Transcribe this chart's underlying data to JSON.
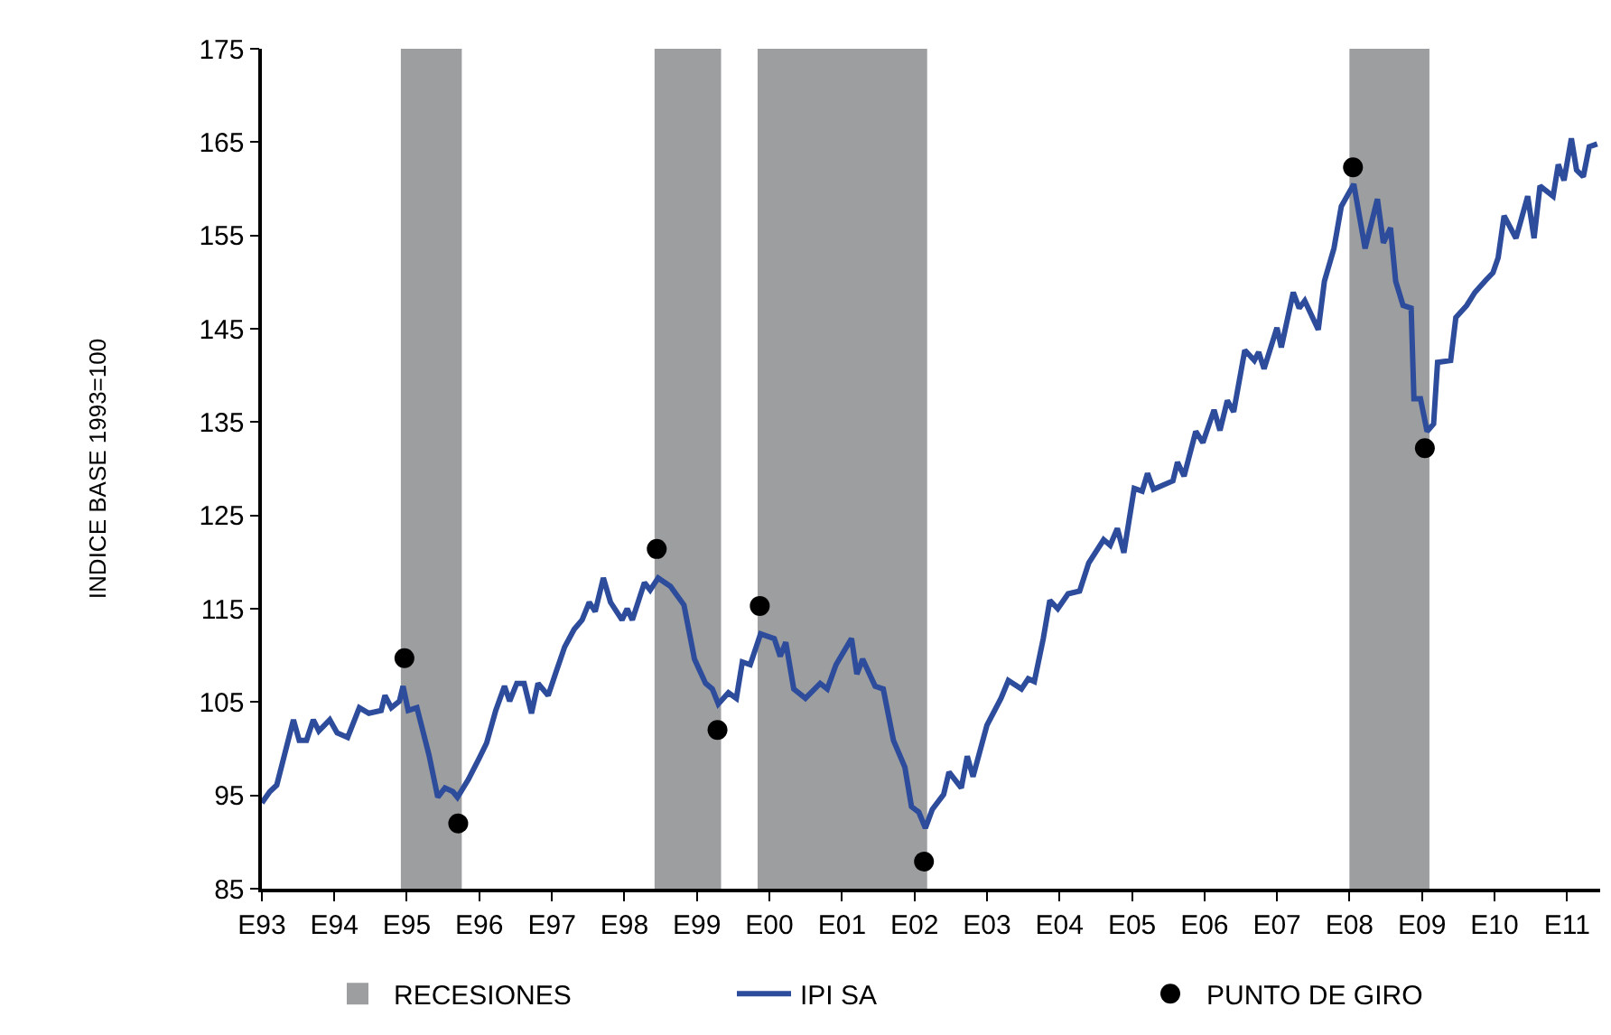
{
  "chart_data": {
    "type": "line",
    "ylabel": "INDICE BASE 1993=100",
    "xlim": [
      "1993-01-01",
      "2011-06-17"
    ],
    "xticks": [
      {
        "value": "1993-01-01",
        "label": "E93"
      },
      {
        "value": "1994-01-01",
        "label": "E94"
      },
      {
        "value": "1995-01-01",
        "label": "E95"
      },
      {
        "value": "1996-01-01",
        "label": "E96"
      },
      {
        "value": "1997-01-01",
        "label": "E97"
      },
      {
        "value": "1998-01-01",
        "label": "E98"
      },
      {
        "value": "1999-01-01",
        "label": "E99"
      },
      {
        "value": "2000-01-01",
        "label": "E00"
      },
      {
        "value": "2001-01-01",
        "label": "E01"
      },
      {
        "value": "2002-01-01",
        "label": "E02"
      },
      {
        "value": "2003-01-01",
        "label": "E03"
      },
      {
        "value": "2004-01-01",
        "label": "E04"
      },
      {
        "value": "2005-01-01",
        "label": "E05"
      },
      {
        "value": "2006-01-01",
        "label": "E06"
      },
      {
        "value": "2007-01-01",
        "label": "E07"
      },
      {
        "value": "2008-01-01",
        "label": "E08"
      },
      {
        "value": "2009-01-01",
        "label": "E09"
      },
      {
        "value": "2010-01-01",
        "label": "E10"
      },
      {
        "value": "2011-01-01",
        "label": "E11"
      }
    ],
    "ylim": [
      85,
      175
    ],
    "yticks": [
      85,
      95,
      105,
      115,
      125,
      135,
      145,
      155,
      165,
      175
    ],
    "grid": false,
    "legend": "bottom",
    "bands": [
      {
        "axis": "x",
        "from": "1994-12-02",
        "to": "1995-10-05",
        "label": "RECESIONES",
        "color": "#9d9ea0"
      },
      {
        "axis": "x",
        "from": "1998-06-02",
        "to": "1999-05-03",
        "color": "#9d9ea0"
      },
      {
        "axis": "x",
        "from": "1999-11-03",
        "to": "2002-03-06",
        "color": "#9d9ea0"
      },
      {
        "axis": "x",
        "from": "2008-01-01",
        "to": "2009-02-07",
        "color": "#9d9ea0"
      }
    ],
    "series": [
      {
        "name": "IPI SA",
        "color": "#2e4c9c",
        "marker": "none",
        "line_style": "solid",
        "x": [
          "1993-01-01",
          "1993-02-10",
          "1993-03-17",
          "1993-06-09",
          "1993-07-08",
          "1993-08-14",
          "1993-09-17",
          "1993-10-15",
          "1993-12-09",
          "1994-01-15",
          "1994-03-09",
          "1994-05-07",
          "1994-06-24",
          "1994-08-25",
          "1994-09-13",
          "1994-10-15",
          "1994-11-25",
          "1994-12-13",
          "1995-01-08",
          "1995-02-21",
          "1995-04-23",
          "1995-06-06",
          "1995-07-12",
          "1995-08-21",
          "1995-09-13",
          "1995-11-07",
          "1996-01-01",
          "1996-02-07",
          "1996-03-24",
          "1996-05-07",
          "1996-06-02",
          "1996-07-08",
          "1996-08-14",
          "1996-09-20",
          "1996-10-23",
          "1996-12-13",
          "1997-01-23",
          "1997-03-06",
          "1997-04-23",
          "1997-06-02",
          "1997-07-08",
          "1997-08-07",
          "1997-09-17",
          "1997-10-23",
          "1997-12-20",
          "1998-01-15",
          "1998-02-10",
          "1998-04-12",
          "1998-05-11",
          "1998-06-20",
          "1998-08-21",
          "1998-10-28",
          "1998-12-20",
          "1999-02-14",
          "1999-03-20",
          "1999-04-19",
          "1999-06-09",
          "1999-07-19",
          "1999-08-18",
          "1999-09-27",
          "1999-11-18",
          "2000-01-26",
          "2000-02-25",
          "2000-03-24",
          "2000-05-03",
          "2000-07-01",
          "2000-09-13",
          "2000-10-19",
          "2000-12-02",
          "2001-02-18",
          "2001-03-17",
          "2001-04-15",
          "2001-06-17",
          "2001-07-28",
          "2001-09-17",
          "2001-11-14",
          "2001-12-17",
          "2002-01-23",
          "2002-02-25",
          "2002-04-01",
          "2002-05-28",
          "2002-06-24",
          "2002-08-25",
          "2002-09-24",
          "2002-10-23",
          "2003-01-01",
          "2003-03-13",
          "2003-04-19",
          "2003-06-24",
          "2003-07-28",
          "2003-08-28",
          "2003-10-12",
          "2003-11-14",
          "2003-12-24",
          "2004-02-14",
          "2004-04-12",
          "2004-05-28",
          "2004-08-11",
          "2004-09-13",
          "2004-10-19",
          "2004-11-21",
          "2005-01-12",
          "2005-02-21",
          "2005-03-20",
          "2005-04-19",
          "2005-07-26",
          "2005-08-18",
          "2005-09-20",
          "2005-11-18",
          "2005-12-24",
          "2006-02-18",
          "2006-03-20",
          "2006-04-26",
          "2006-05-28",
          "2006-07-23",
          "2006-09-09",
          "2006-10-01",
          "2006-10-28",
          "2007-01-01",
          "2007-01-23",
          "2007-03-24",
          "2007-04-23",
          "2007-05-21",
          "2007-07-28",
          "2007-08-28",
          "2007-10-15",
          "2007-11-21",
          "2008-01-23",
          "2008-03-20",
          "2008-05-21",
          "2008-06-20",
          "2008-07-26",
          "2008-08-21",
          "2008-09-27",
          "2008-11-07",
          "2008-11-21",
          "2008-12-24",
          "2009-01-26",
          "2009-02-28",
          "2009-03-20",
          "2009-05-25",
          "2009-06-20",
          "2009-08-14",
          "2009-09-24",
          "2009-11-18",
          "2009-12-24",
          "2010-01-19",
          "2010-02-18",
          "2010-04-19",
          "2010-06-17",
          "2010-07-19",
          "2010-08-18",
          "2010-10-23",
          "2010-11-18",
          "2010-12-17",
          "2011-01-23",
          "2011-02-18",
          "2011-03-24",
          "2011-04-23",
          "2011-06-02"
        ],
        "values": [
          94.2,
          95.4,
          96.1,
          103.1,
          100.9,
          100.9,
          103.1,
          101.9,
          103.1,
          101.7,
          101.2,
          104.4,
          103.8,
          104.1,
          105.7,
          104.4,
          105.1,
          106.7,
          104.1,
          104.4,
          99.3,
          94.8,
          95.8,
          95.4,
          94.8,
          96.7,
          99.0,
          100.6,
          104.1,
          106.7,
          105.1,
          107.0,
          107.0,
          103.8,
          107.0,
          105.7,
          108.3,
          110.9,
          112.8,
          113.8,
          115.7,
          114.7,
          118.3,
          115.7,
          113.8,
          115.0,
          113.8,
          117.8,
          117.0,
          118.3,
          117.4,
          115.4,
          109.6,
          107.0,
          106.4,
          104.8,
          106.0,
          105.4,
          109.3,
          109.0,
          112.3,
          111.8,
          109.9,
          111.4,
          106.4,
          105.4,
          107.0,
          106.4,
          109.0,
          111.8,
          108.0,
          109.6,
          106.7,
          106.4,
          100.9,
          98.0,
          93.8,
          93.2,
          91.5,
          93.5,
          95.1,
          97.5,
          95.8,
          99.2,
          97.0,
          102.5,
          105.4,
          107.3,
          106.4,
          107.5,
          107.2,
          111.8,
          115.9,
          115.0,
          116.6,
          116.9,
          119.9,
          122.4,
          121.8,
          123.6,
          121.0,
          127.9,
          127.6,
          129.5,
          127.8,
          128.7,
          130.7,
          129.2,
          134.0,
          132.8,
          136.3,
          134.1,
          137.3,
          136.1,
          142.7,
          141.6,
          142.5,
          140.7,
          145.1,
          143.0,
          148.9,
          147.2,
          148.0,
          144.9,
          150.1,
          153.6,
          158.1,
          160.5,
          153.6,
          158.9,
          154.2,
          155.8,
          150.1,
          147.5,
          147.2,
          137.5,
          137.5,
          134.0,
          134.8,
          141.4,
          141.6,
          146.2,
          147.5,
          148.9,
          150.2,
          151.0,
          152.6,
          157.1,
          154.7,
          159.2,
          154.7,
          160.3,
          159.2,
          162.6,
          160.9,
          165.4,
          162.0,
          161.3,
          164.5,
          164.8
        ]
      },
      {
        "name": "PUNTO DE GIRO",
        "type": "scatter",
        "color": "#000000",
        "marker": "circle",
        "x": [
          "1994-12-20",
          "1995-09-17",
          "1998-06-13",
          "1999-04-15",
          "1999-11-14",
          "2002-02-18",
          "2008-01-19",
          "2009-01-15"
        ],
        "values": [
          109.7,
          92.0,
          121.4,
          102.0,
          115.3,
          87.9,
          162.3,
          132.2
        ]
      }
    ]
  }
}
